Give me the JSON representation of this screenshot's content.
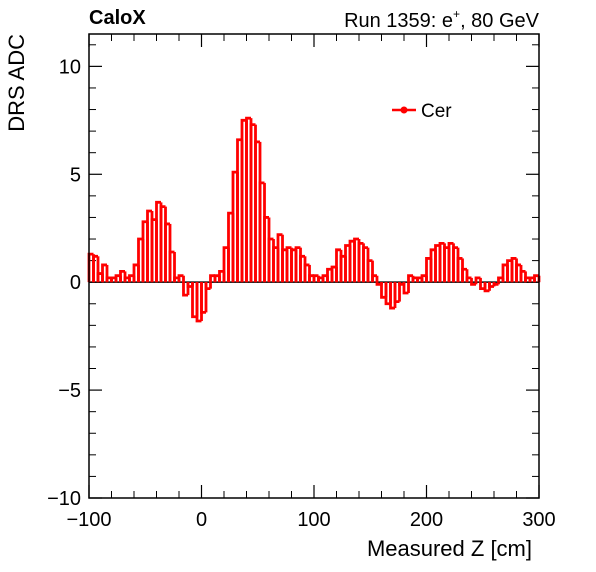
{
  "header": {
    "experiment": "CaloX",
    "run_prefix": "Run 1359: e",
    "run_sup": "+",
    "run_suffix": ", 80 GeV"
  },
  "chart_data": {
    "type": "histogram-step",
    "title": "",
    "xlabel": "Measured Z [cm]",
    "ylabel": "DRS ADC",
    "xlim": [
      -100,
      300
    ],
    "ylim": [
      -10,
      11.5
    ],
    "x_ticks": [
      -100,
      0,
      100,
      200,
      300
    ],
    "x_tick_labels": [
      "−100",
      "0",
      "100",
      "200",
      "300"
    ],
    "y_ticks": [
      -10,
      -5,
      0,
      5,
      10
    ],
    "y_tick_labels": [
      "−10",
      "−5",
      "0",
      "5",
      "10"
    ],
    "grid": false,
    "zero_line": true,
    "legend": {
      "position": "top-right",
      "entries": [
        {
          "name": "Cer",
          "color": "#ff0000"
        }
      ]
    },
    "bin_width": 4,
    "x_start": -100,
    "series": [
      {
        "name": "Cer",
        "color": "#ff0000",
        "values": [
          1.3,
          1.2,
          0.4,
          0.8,
          0.2,
          0.2,
          0.3,
          0.5,
          0.2,
          0.3,
          0.8,
          2.0,
          2.8,
          3.3,
          2.9,
          3.7,
          3.5,
          2.7,
          1.4,
          0.2,
          0.3,
          -0.6,
          -0.2,
          -1.6,
          -1.8,
          -1.4,
          -0.3,
          0.3,
          0.3,
          0.5,
          1.6,
          3.2,
          5.1,
          6.6,
          7.5,
          7.6,
          7.3,
          6.5,
          4.6,
          3.0,
          2.0,
          1.6,
          2.2,
          1.5,
          1.6,
          1.5,
          1.6,
          1.2,
          0.8,
          0.3,
          0.3,
          0.2,
          0.3,
          0.6,
          0.7,
          1.5,
          1.2,
          1.7,
          1.9,
          2.0,
          1.8,
          1.6,
          1.0,
          0.3,
          -0.1,
          -0.7,
          -1.0,
          -1.2,
          -0.9,
          -0.1,
          -0.5,
          0.3,
          0.2,
          0.2,
          0.3,
          1.1,
          1.5,
          1.7,
          1.8,
          1.6,
          1.8,
          1.6,
          1.1,
          0.6,
          0.2,
          -0.1,
          0.2,
          -0.3,
          -0.4,
          -0.2,
          -0.1,
          0.2,
          0.8,
          1.0,
          1.1,
          0.8,
          0.5,
          0.2,
          0.2,
          0.3
        ]
      }
    ]
  }
}
